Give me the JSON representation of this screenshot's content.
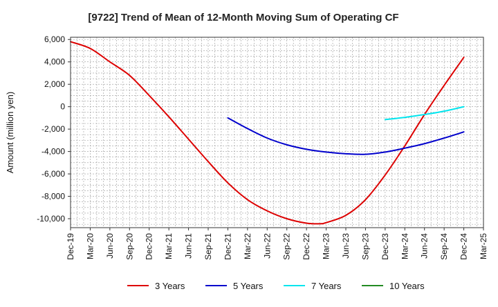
{
  "chart_data": {
    "type": "line",
    "title": "[9722]  Trend of Mean of 12-Month Moving Sum of Operating CF",
    "xlabel": "",
    "ylabel": "Amount (million yen)",
    "ylim": [
      -10800,
      6200
    ],
    "y_ticks": [
      6000,
      4000,
      2000,
      0,
      -2000,
      -4000,
      -6000,
      -8000,
      -10000
    ],
    "y_tick_labels": [
      "6,000",
      "4,000",
      "2,000",
      "0",
      "-2,000",
      "-4,000",
      "-6,000",
      "-8,000",
      "-10,000"
    ],
    "x_tick_labels": [
      "Dec-19",
      "Mar-20",
      "Jun-20",
      "Sep-20",
      "Dec-20",
      "Mar-21",
      "Jun-21",
      "Sep-21",
      "Dec-21",
      "Mar-22",
      "Jun-22",
      "Sep-22",
      "Dec-22",
      "Mar-23",
      "Jun-23",
      "Sep-23",
      "Dec-23",
      "Mar-24",
      "Jun-24",
      "Sep-24",
      "Dec-24",
      "Mar-25"
    ],
    "x_unit": "months since Dec-19",
    "xlim": [
      0,
      63
    ],
    "grid": true,
    "legend_position": "bottom",
    "series": [
      {
        "name": "3 Years",
        "color": "#dd0000",
        "x": [
          0,
          3,
          6,
          9,
          12,
          15,
          18,
          21,
          24,
          27,
          30,
          33,
          36,
          38,
          39,
          42,
          45,
          48,
          51,
          54,
          57,
          60
        ],
        "values": [
          5800,
          5200,
          4000,
          2800,
          1000,
          -900,
          -2900,
          -4900,
          -6800,
          -8300,
          -9300,
          -10000,
          -10400,
          -10450,
          -10350,
          -9700,
          -8300,
          -6100,
          -3500,
          -700,
          1900,
          4400
        ]
      },
      {
        "name": "5 Years",
        "color": "#0000cc",
        "x": [
          24,
          27,
          30,
          33,
          36,
          39,
          42,
          45,
          48,
          51,
          54,
          57,
          60
        ],
        "values": [
          -1000,
          -1950,
          -2800,
          -3400,
          -3800,
          -4050,
          -4200,
          -4250,
          -4050,
          -3700,
          -3300,
          -2800,
          -2250
        ]
      },
      {
        "name": "7 Years",
        "color": "#00e5ee",
        "x": [
          48,
          51,
          54,
          57,
          60
        ],
        "values": [
          -1150,
          -950,
          -700,
          -400,
          0
        ]
      },
      {
        "name": "10 Years",
        "color": "#228b22",
        "x": [],
        "values": []
      }
    ]
  }
}
